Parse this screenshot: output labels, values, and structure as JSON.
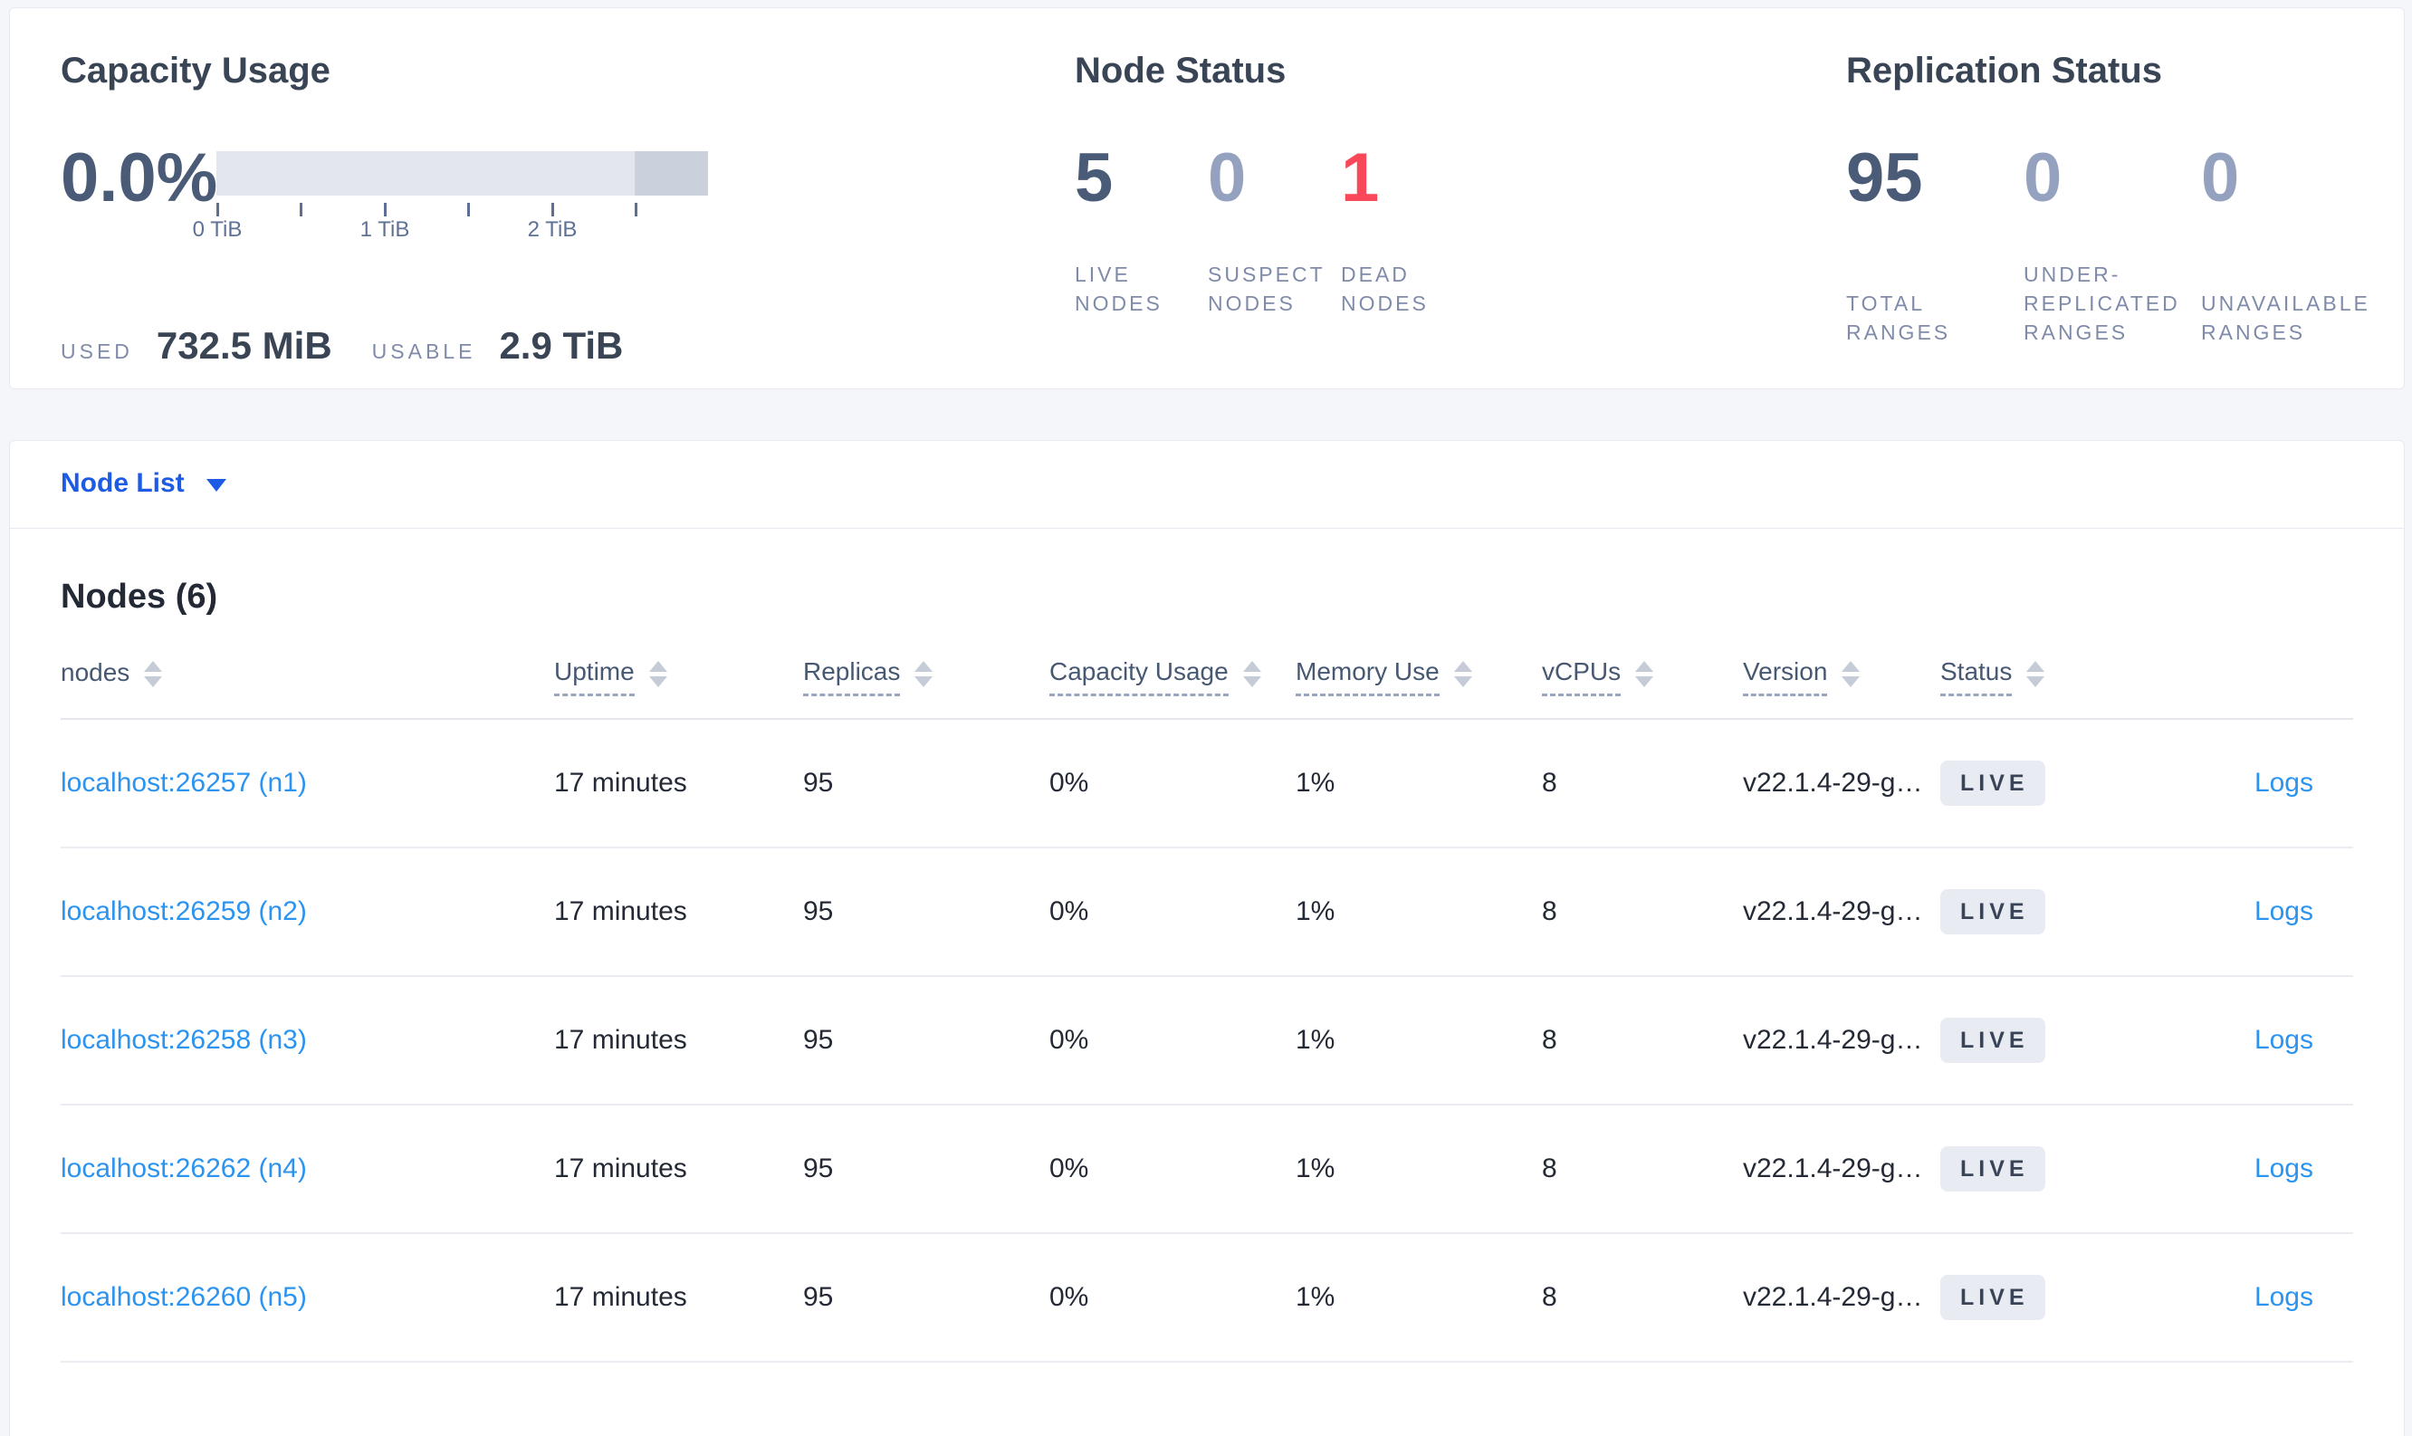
{
  "summary": {
    "capacity": {
      "title": "Capacity Usage",
      "percent": "0.0%",
      "tick_labels": [
        "0 TiB",
        "1 TiB",
        "2 TiB"
      ],
      "used_label": "USED",
      "used_value": "732.5 MiB",
      "usable_label": "USABLE",
      "usable_value": "2.9 TiB"
    },
    "node_status": {
      "title": "Node Status",
      "stats": [
        {
          "value": "5",
          "label": "LIVE\nNODES",
          "color": "dark"
        },
        {
          "value": "0",
          "label": "SUSPECT\nNODES",
          "color": "muted"
        },
        {
          "value": "1",
          "label": "DEAD\nNODES",
          "color": "danger"
        }
      ]
    },
    "replication": {
      "title": "Replication Status",
      "stats": [
        {
          "value": "95",
          "label": "TOTAL\nRANGES",
          "color": "dark"
        },
        {
          "value": "0",
          "label": "UNDER-\nREPLICATED\nRANGES",
          "color": "muted"
        },
        {
          "value": "0",
          "label": "UNAVAILABLE\nRANGES",
          "color": "muted"
        }
      ]
    }
  },
  "view_selector": {
    "label": "Node List"
  },
  "table": {
    "title": "Nodes (6)",
    "columns": [
      {
        "label": "nodes",
        "sortable": false
      },
      {
        "label": "Uptime",
        "sortable": true
      },
      {
        "label": "Replicas",
        "sortable": true
      },
      {
        "label": "Capacity Usage",
        "sortable": true
      },
      {
        "label": "Memory Use",
        "sortable": true
      },
      {
        "label": "vCPUs",
        "sortable": true
      },
      {
        "label": "Version",
        "sortable": true
      },
      {
        "label": "Status",
        "sortable": true
      }
    ],
    "rows": [
      {
        "node": "localhost:26257 (n1)",
        "uptime": "17 minutes",
        "replicas": "95",
        "capacity": "0%",
        "memory": "1%",
        "vcpus": "8",
        "version": "v22.1.4-29-g…",
        "status": "LIVE",
        "logs": "Logs"
      },
      {
        "node": "localhost:26259 (n2)",
        "uptime": "17 minutes",
        "replicas": "95",
        "capacity": "0%",
        "memory": "1%",
        "vcpus": "8",
        "version": "v22.1.4-29-g…",
        "status": "LIVE",
        "logs": "Logs"
      },
      {
        "node": "localhost:26258 (n3)",
        "uptime": "17 minutes",
        "replicas": "95",
        "capacity": "0%",
        "memory": "1%",
        "vcpus": "8",
        "version": "v22.1.4-29-g…",
        "status": "LIVE",
        "logs": "Logs"
      },
      {
        "node": "localhost:26262 (n4)",
        "uptime": "17 minutes",
        "replicas": "95",
        "capacity": "0%",
        "memory": "1%",
        "vcpus": "8",
        "version": "v22.1.4-29-g…",
        "status": "LIVE",
        "logs": "Logs"
      },
      {
        "node": "localhost:26260 (n5)",
        "uptime": "17 minutes",
        "replicas": "95",
        "capacity": "0%",
        "memory": "1%",
        "vcpus": "8",
        "version": "v22.1.4-29-g…",
        "status": "LIVE",
        "logs": "Logs"
      }
    ]
  },
  "colors": {
    "accent_blue": "#1e5be4",
    "link_blue": "#2b93f0",
    "number_dark": "#4a5b77",
    "number_muted": "#94a1bf",
    "number_danger": "#f8485a",
    "badge_bg": "#e8ebf2",
    "badge_text": "#3a4458",
    "gauge_light": "#e3e6ec",
    "gauge_dark": "#cbd1dc"
  }
}
